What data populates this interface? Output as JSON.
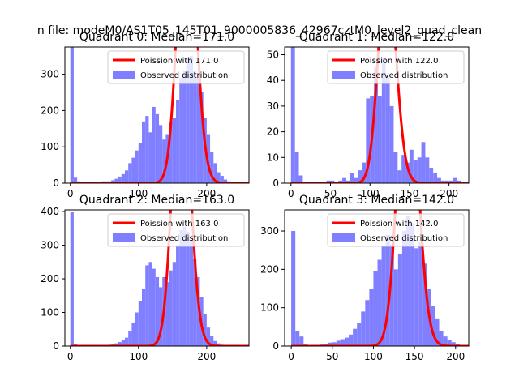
{
  "figure_title": "n file: modeM0/AS1T05_145T01_9000005836_42967cztM0_level2_quad_clean",
  "colors": {
    "observed": "#7f7fff",
    "poisson": "#ff0000"
  },
  "chart_data": [
    {
      "type": "bar",
      "title": "Quadrant 0: Median=171.0",
      "xlim": [
        -8,
        262
      ],
      "ylim": [
        0,
        375
      ],
      "xticks": [
        0,
        100,
        200
      ],
      "yticks": [
        0,
        100,
        200,
        300
      ],
      "legend": {
        "placement": "top-right",
        "line_label": "Poission with 171.0",
        "hist_label": "Observed distribution"
      },
      "bin_start": 0,
      "bin_width": 5,
      "counts": [
        375,
        15,
        5,
        4,
        4,
        4,
        4,
        4,
        4,
        5,
        5,
        5,
        8,
        12,
        18,
        25,
        35,
        55,
        70,
        90,
        110,
        170,
        185,
        140,
        210,
        190,
        160,
        120,
        135,
        170,
        180,
        230,
        290,
        310,
        345,
        350,
        310,
        290,
        250,
        180,
        135,
        85,
        55,
        30,
        20,
        10,
        5,
        3,
        0,
        0
      ],
      "poisson": {
        "lambda": 171.0
      }
    },
    {
      "type": "bar",
      "title": "Quadrant 1: Median=122.0",
      "xlim": [
        -8,
        225
      ],
      "ylim": [
        0,
        53
      ],
      "xticks": [
        0,
        50,
        100,
        150,
        200
      ],
      "yticks": [
        0,
        10,
        20,
        30,
        40,
        50
      ],
      "legend": {
        "placement": "top-right",
        "line_label": "Poission with 122.0",
        "hist_label": "Observed distribution"
      },
      "bin_start": 0,
      "bin_width": 5,
      "counts": [
        53,
        12,
        3,
        0,
        0,
        0,
        0,
        0,
        0,
        1,
        1,
        0,
        1,
        2,
        1,
        4,
        2,
        5,
        8,
        33,
        34,
        45,
        34,
        49,
        41,
        30,
        12,
        5,
        11,
        8,
        13,
        9,
        10,
        16,
        10,
        6,
        4,
        2,
        1,
        1,
        1,
        2,
        1,
        0,
        0
      ],
      "poisson": {
        "lambda": 122.0
      }
    },
    {
      "type": "bar",
      "title": "Quadrant 2: Median=163.0",
      "xlim": [
        -8,
        262
      ],
      "ylim": [
        0,
        405
      ],
      "xticks": [
        0,
        100,
        200
      ],
      "yticks": [
        0,
        100,
        200,
        300,
        400
      ],
      "legend": {
        "placement": "top-right",
        "line_label": "Poission with 163.0",
        "hist_label": "Observed distribution"
      },
      "bin_start": 0,
      "bin_width": 5,
      "counts": [
        400,
        5,
        3,
        2,
        2,
        2,
        2,
        2,
        2,
        3,
        3,
        4,
        5,
        8,
        12,
        18,
        25,
        45,
        70,
        100,
        135,
        170,
        240,
        250,
        230,
        205,
        175,
        205,
        190,
        225,
        250,
        300,
        345,
        355,
        340,
        315,
        260,
        205,
        145,
        95,
        55,
        30,
        15,
        8,
        4,
        2,
        1,
        0,
        0,
        0
      ],
      "poisson": {
        "lambda": 163.0
      }
    },
    {
      "type": "bar",
      "title": "Quadrant 3: Median=142.0",
      "xlim": [
        -8,
        216
      ],
      "ylim": [
        0,
        355
      ],
      "xticks": [
        0,
        50,
        100,
        150,
        200
      ],
      "yticks": [
        0,
        100,
        200,
        300
      ],
      "legend": {
        "placement": "top-right",
        "line_label": "Poission with 142.0",
        "hist_label": "Observed distribution"
      },
      "bin_start": 0,
      "bin_width": 5,
      "counts": [
        300,
        40,
        25,
        5,
        2,
        2,
        3,
        4,
        6,
        9,
        10,
        14,
        18,
        22,
        30,
        45,
        60,
        90,
        120,
        150,
        195,
        225,
        260,
        290,
        265,
        200,
        240,
        300,
        340,
        320,
        255,
        270,
        215,
        150,
        105,
        70,
        40,
        25,
        15,
        10,
        5,
        3
      ],
      "poisson": {
        "lambda": 142.0
      }
    }
  ]
}
